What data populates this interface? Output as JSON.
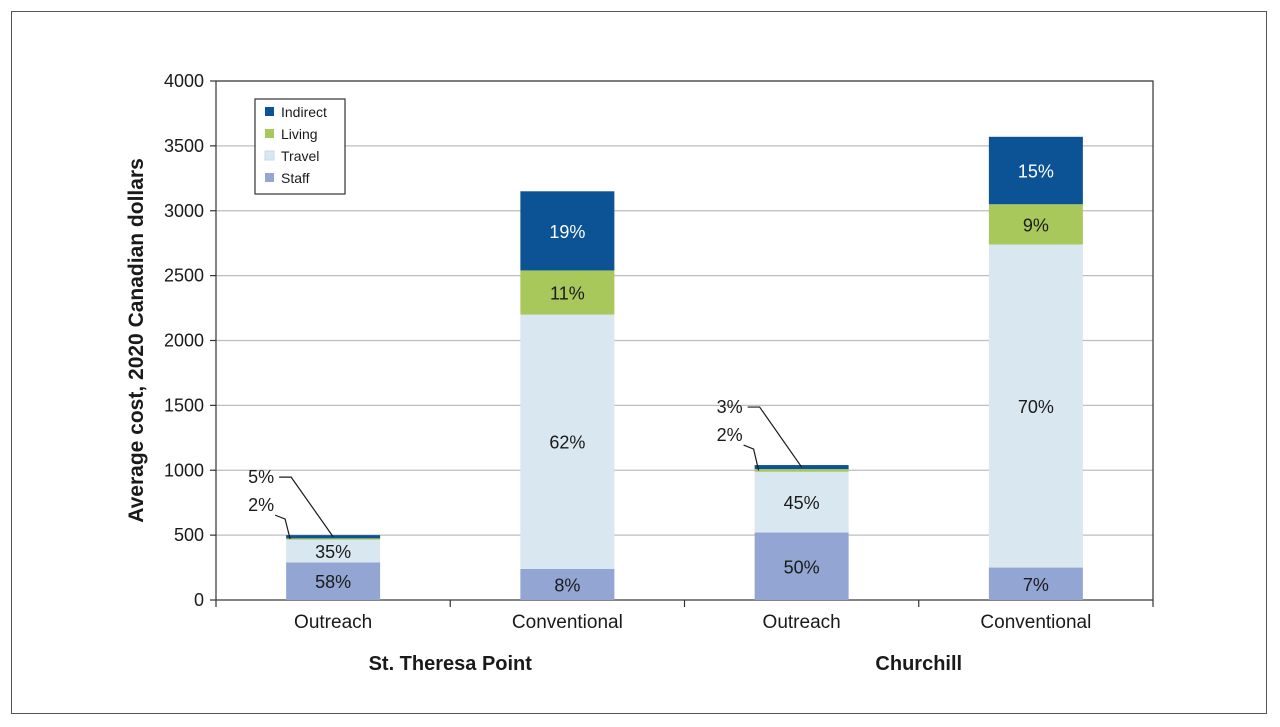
{
  "chart_data": {
    "type": "bar",
    "stacked": true,
    "ylabel": "Average cost, 2020 Canadian dollars",
    "xlabel": "",
    "title": "",
    "ylim": [
      0,
      4000
    ],
    "yticks": [
      0,
      500,
      1000,
      1500,
      2000,
      2500,
      3000,
      3500,
      4000
    ],
    "grid": "horizontal",
    "legend_position": "top-left",
    "groups": [
      "St. Theresa Point",
      "Churchill"
    ],
    "categories": [
      "Outreach",
      "Conventional",
      "Outreach",
      "Conventional"
    ],
    "category_groups": [
      0,
      0,
      1,
      1
    ],
    "series": [
      {
        "name": "Staff",
        "color": "#93a5d2",
        "text_color": "#1a1a1a",
        "values": [
          290,
          240,
          520,
          250
        ],
        "labels": [
          "58%",
          "8%",
          "50%",
          "7%"
        ]
      },
      {
        "name": "Travel",
        "color": "#d9e7f1",
        "text_color": "#1a1a1a",
        "values": [
          175,
          1960,
          468,
          2490
        ],
        "labels": [
          "35%",
          "62%",
          "45%",
          "70%"
        ]
      },
      {
        "name": "Living",
        "color": "#a8c85c",
        "text_color": "#1a1a1a",
        "values": [
          10,
          340,
          21,
          310
        ],
        "labels": [
          "2%",
          "11%",
          "2%",
          "9%"
        ]
      },
      {
        "name": "Indirect",
        "color": "#0b5394",
        "text_color": "#ffffff",
        "values": [
          25,
          610,
          31,
          520
        ],
        "labels": [
          "5%",
          "19%",
          "3%",
          "15%"
        ]
      }
    ],
    "callouts": [
      {
        "bar": 0,
        "series": "Indirect",
        "text": "5%"
      },
      {
        "bar": 0,
        "series": "Living",
        "text": "2%"
      },
      {
        "bar": 2,
        "series": "Indirect",
        "text": "3%"
      },
      {
        "bar": 2,
        "series": "Living",
        "text": "2%"
      }
    ]
  }
}
